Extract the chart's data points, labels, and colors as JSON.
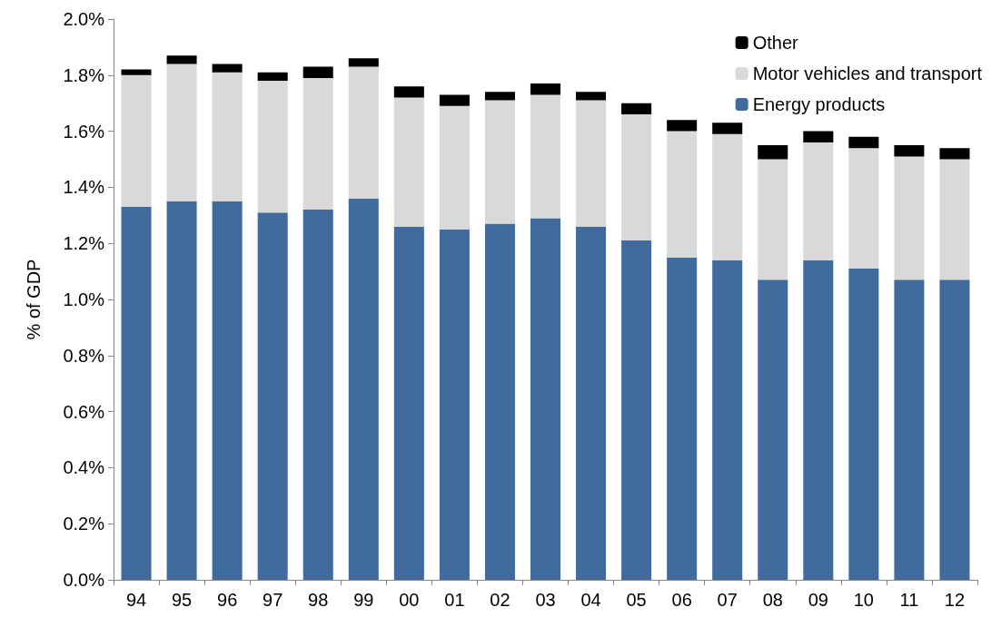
{
  "chart_data": {
    "type": "bar",
    "stacked": true,
    "ylabel": "% of GDP",
    "categories": [
      "94",
      "95",
      "96",
      "97",
      "98",
      "99",
      "00",
      "01",
      "02",
      "03",
      "04",
      "05",
      "06",
      "07",
      "08",
      "09",
      "10",
      "11",
      "12"
    ],
    "series": [
      {
        "name": "Energy products",
        "color": "#416b9c",
        "values": [
          1.33,
          1.35,
          1.35,
          1.31,
          1.32,
          1.36,
          1.26,
          1.25,
          1.27,
          1.29,
          1.26,
          1.21,
          1.15,
          1.14,
          1.07,
          1.14,
          1.11,
          1.07,
          1.07
        ]
      },
      {
        "name": "Motor vehicles and transport",
        "color": "#d9d9d9",
        "values": [
          0.47,
          0.49,
          0.46,
          0.47,
          0.47,
          0.47,
          0.46,
          0.44,
          0.44,
          0.44,
          0.45,
          0.45,
          0.45,
          0.45,
          0.43,
          0.42,
          0.43,
          0.44,
          0.43
        ]
      },
      {
        "name": "Other",
        "color": "#000000",
        "values": [
          0.02,
          0.03,
          0.03,
          0.03,
          0.04,
          0.03,
          0.04,
          0.04,
          0.03,
          0.04,
          0.03,
          0.04,
          0.04,
          0.04,
          0.05,
          0.04,
          0.04,
          0.04,
          0.04
        ]
      }
    ],
    "ylim": [
      0,
      2
    ],
    "yticks": [
      {
        "value": 0,
        "label": "0.0%"
      },
      {
        "value": 0.2,
        "label": "0.2%"
      },
      {
        "value": 0.4,
        "label": "0.4%"
      },
      {
        "value": 0.6,
        "label": "0.6%"
      },
      {
        "value": 0.8,
        "label": "0.8%"
      },
      {
        "value": 1,
        "label": "1.0%"
      },
      {
        "value": 1.2,
        "label": "1.2%"
      },
      {
        "value": 1.4,
        "label": "1.4%"
      },
      {
        "value": 1.6,
        "label": "1.6%"
      },
      {
        "value": 1.8,
        "label": "1.8%"
      },
      {
        "value": 2,
        "label": "2.0%"
      }
    ],
    "grid": false,
    "legend": "top right"
  }
}
